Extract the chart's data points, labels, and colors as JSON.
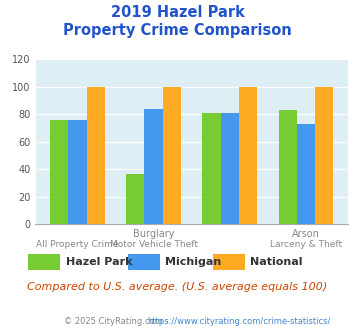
{
  "title_line1": "2019 Hazel Park",
  "title_line2": "Property Crime Comparison",
  "hazel_park": [
    76,
    37,
    81,
    83
  ],
  "michigan": [
    76,
    84,
    81,
    73
  ],
  "national": [
    100,
    100,
    100,
    100
  ],
  "colors": {
    "hazel_park": "#77cc33",
    "michigan": "#4499ee",
    "national": "#ffaa22"
  },
  "ylim": [
    0,
    120
  ],
  "yticks": [
    0,
    20,
    40,
    60,
    80,
    100,
    120
  ],
  "title_color": "#2255cc",
  "bg_color": "#ddeef5",
  "group_labels_top": [
    "",
    "Burglary",
    "",
    "Arson"
  ],
  "group_labels_bot": [
    "All Property Crime",
    "Motor Vehicle Theft",
    "",
    "Larceny & Theft"
  ],
  "legend_entries": [
    "Hazel Park",
    "Michigan",
    "National"
  ],
  "note_text": "Compared to U.S. average. (U.S. average equals 100)",
  "note_color": "#cc4400",
  "footer_part1": "© 2025 CityRating.com - ",
  "footer_part2": "https://www.cityrating.com/crime-statistics/",
  "footer_color1": "#888888",
  "footer_color2": "#4488cc"
}
